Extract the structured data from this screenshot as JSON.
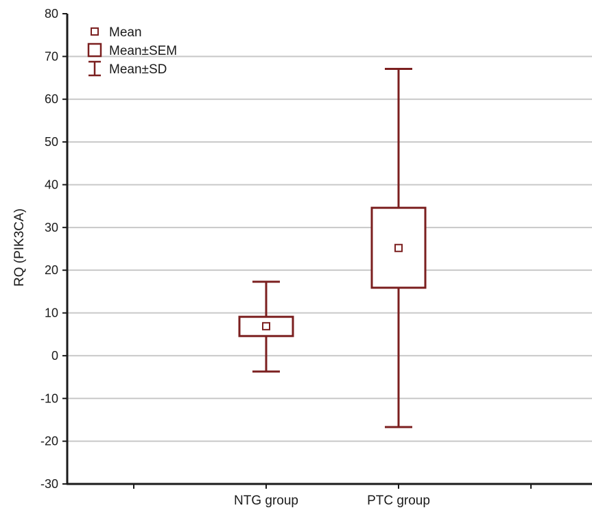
{
  "chart_data": {
    "type": "box",
    "title": "",
    "xlabel": "",
    "ylabel": "RQ (PIK3CA)",
    "ylim": [
      -30,
      80
    ],
    "yticks": [
      -30,
      -20,
      -10,
      0,
      10,
      20,
      30,
      40,
      50,
      60,
      70,
      80
    ],
    "grid": true,
    "legend_position": "top-left",
    "legend": [
      {
        "key": "mean",
        "label": "Mean"
      },
      {
        "key": "sem",
        "label": "Mean±SEM"
      },
      {
        "key": "sd",
        "label": "Mean±SD"
      }
    ],
    "categories": [
      "NTG group",
      "PTC group"
    ],
    "groups": [
      {
        "name": "NTG group",
        "mean": 6.9,
        "sem_low": 4.6,
        "sem_high": 9.1,
        "sd_low": -3.7,
        "sd_high": 17.3
      },
      {
        "name": "PTC group",
        "mean": 25.2,
        "sem_low": 15.9,
        "sem_high": 34.6,
        "sd_low": -16.7,
        "sd_high": 67.1
      }
    ],
    "color": "#7b1f1f"
  }
}
